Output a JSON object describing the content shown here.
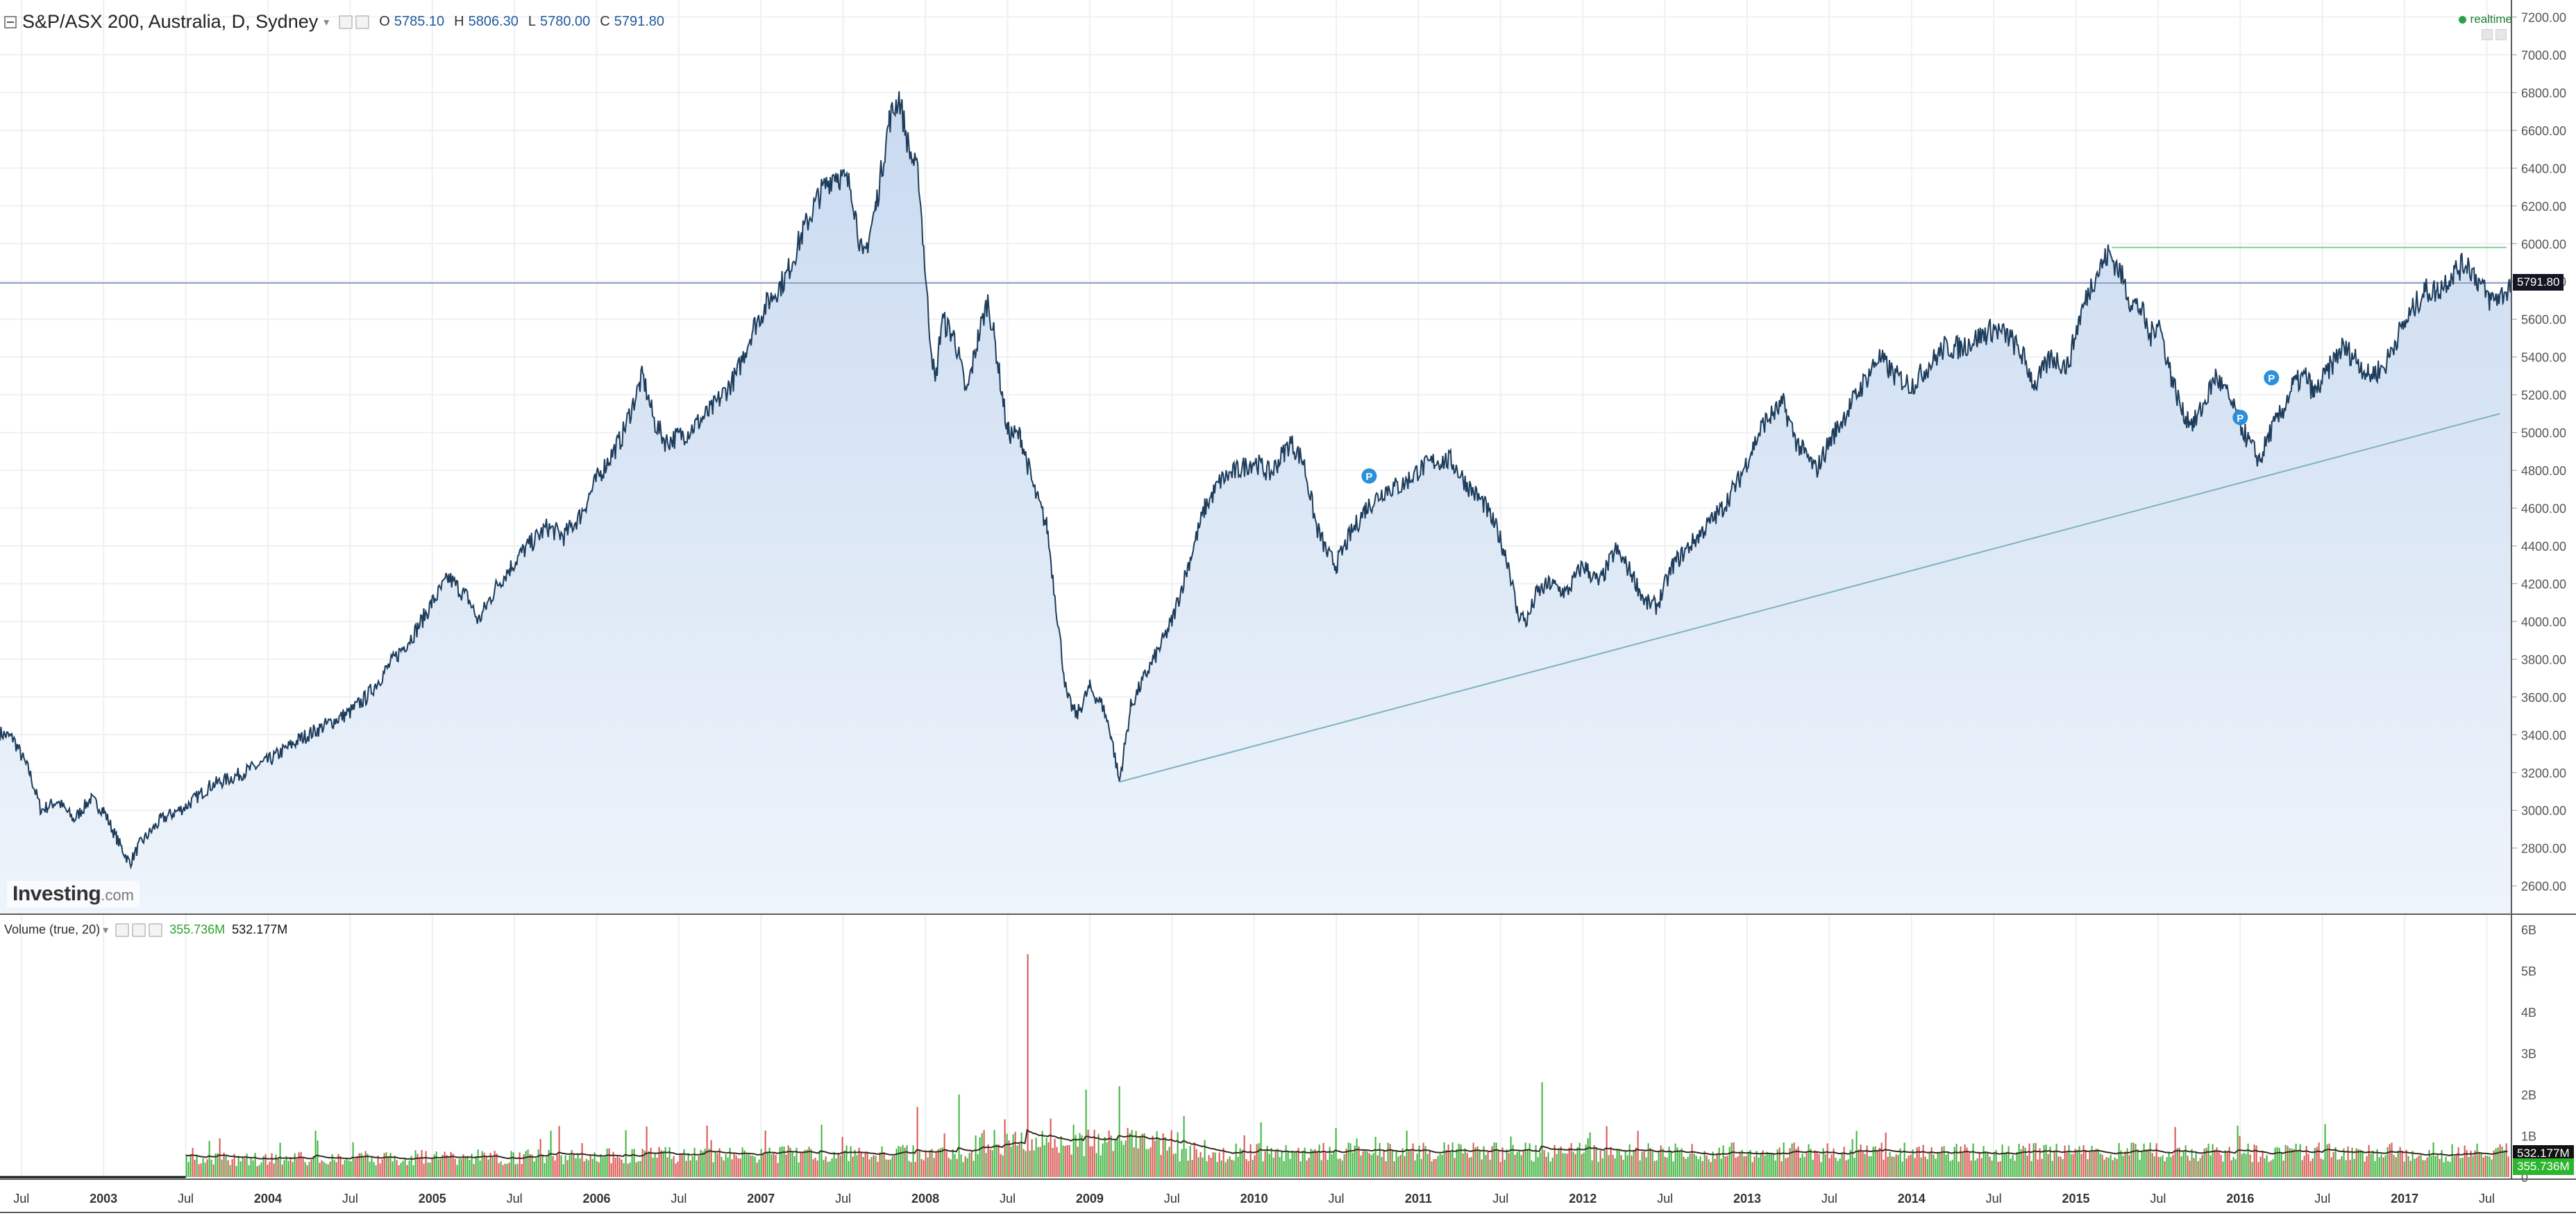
{
  "header": {
    "symbol": "S&P/ASX 200, Australia, D, Sydney",
    "open_label": "O",
    "open": "5785.10",
    "high_label": "H",
    "high": "5806.30",
    "low_label": "L",
    "low": "5780.00",
    "close_label": "C",
    "close": "5791.80",
    "realtime": "realtime"
  },
  "volume_legend": {
    "title": "Volume (true, 20)",
    "volume": "355.736M",
    "average": "532.177M"
  },
  "logo": {
    "name": "Investing",
    "domain": ".com"
  },
  "colors": {
    "line": "#1e3d5c",
    "area_top": "#c9daf0",
    "area_bottom": "#eef4fb",
    "grid": "#eef0f3",
    "current_price_line": "#8fa0c4",
    "resistance_line": "#7fcf9a",
    "trendline": "#7db3bf",
    "vol_up": "#3cb43c",
    "vol_down": "#d9534f",
    "vol_ma": "#3a2a22",
    "price_tag_bg": "#131722",
    "avg_tag_bg": "#111111",
    "vol_tag_bg": "#2db52d",
    "marker": "#2b90d9"
  },
  "chart_data": {
    "type": "line",
    "title": "S&P/ASX 200, Australia, D, Sydney",
    "price_axis": {
      "ylim": [
        2450,
        7290
      ],
      "ticks": [
        "2600.00",
        "2800.00",
        "3000.00",
        "3200.00",
        "3400.00",
        "3600.00",
        "3800.00",
        "4000.00",
        "4200.00",
        "4400.00",
        "4600.00",
        "4800.00",
        "5000.00",
        "5200.00",
        "5400.00",
        "5600.00",
        "5800.00",
        "6000.00",
        "6200.00",
        "6400.00",
        "6600.00",
        "6800.00",
        "7000.00",
        "7200.00"
      ],
      "current_price": "5791.80"
    },
    "time_axis": {
      "xlim": [
        2002.37,
        2017.65
      ],
      "ticks": [
        {
          "t": 2002.5,
          "label": "Jul"
        },
        {
          "t": 2003.0,
          "label": "2003"
        },
        {
          "t": 2003.5,
          "label": "Jul"
        },
        {
          "t": 2004.0,
          "label": "2004"
        },
        {
          "t": 2004.5,
          "label": "Jul"
        },
        {
          "t": 2005.0,
          "label": "2005"
        },
        {
          "t": 2005.5,
          "label": "Jul"
        },
        {
          "t": 2006.0,
          "label": "2006"
        },
        {
          "t": 2006.5,
          "label": "Jul"
        },
        {
          "t": 2007.0,
          "label": "2007"
        },
        {
          "t": 2007.5,
          "label": "Jul"
        },
        {
          "t": 2008.0,
          "label": "2008"
        },
        {
          "t": 2008.5,
          "label": "Jul"
        },
        {
          "t": 2009.0,
          "label": "2009"
        },
        {
          "t": 2009.5,
          "label": "Jul"
        },
        {
          "t": 2010.0,
          "label": "2010"
        },
        {
          "t": 2010.5,
          "label": "Jul"
        },
        {
          "t": 2011.0,
          "label": "2011"
        },
        {
          "t": 2011.5,
          "label": "Jul"
        },
        {
          "t": 2012.0,
          "label": "2012"
        },
        {
          "t": 2012.5,
          "label": "Jul"
        },
        {
          "t": 2013.0,
          "label": "2013"
        },
        {
          "t": 2013.5,
          "label": "Jul"
        },
        {
          "t": 2014.0,
          "label": "2014"
        },
        {
          "t": 2014.5,
          "label": "Jul"
        },
        {
          "t": 2015.0,
          "label": "2015"
        },
        {
          "t": 2015.5,
          "label": "Jul"
        },
        {
          "t": 2016.0,
          "label": "2016"
        },
        {
          "t": 2016.5,
          "label": "Jul"
        },
        {
          "t": 2017.0,
          "label": "2017"
        },
        {
          "t": 2017.5,
          "label": "Jul"
        }
      ]
    },
    "series": [
      {
        "values_note_free": true,
        "points": [
          [
            2002.37,
            3410
          ],
          [
            2002.45,
            3380
          ],
          [
            2002.55,
            3200
          ],
          [
            2002.62,
            3000
          ],
          [
            2002.72,
            3050
          ],
          [
            2002.82,
            2950
          ],
          [
            2002.92,
            3060
          ],
          [
            2003.0,
            3000
          ],
          [
            2003.08,
            2850
          ],
          [
            2003.16,
            2720
          ],
          [
            2003.22,
            2820
          ],
          [
            2003.35,
            2950
          ],
          [
            2003.5,
            3020
          ],
          [
            2003.65,
            3130
          ],
          [
            2003.8,
            3180
          ],
          [
            2004.0,
            3260
          ],
          [
            2004.2,
            3380
          ],
          [
            2004.35,
            3450
          ],
          [
            2004.5,
            3520
          ],
          [
            2004.6,
            3600
          ],
          [
            2004.75,
            3780
          ],
          [
            2004.9,
            3950
          ],
          [
            2005.0,
            4100
          ],
          [
            2005.1,
            4230
          ],
          [
            2005.22,
            4120
          ],
          [
            2005.28,
            4000
          ],
          [
            2005.4,
            4200
          ],
          [
            2005.55,
            4370
          ],
          [
            2005.7,
            4500
          ],
          [
            2005.8,
            4450
          ],
          [
            2005.9,
            4560
          ],
          [
            2006.0,
            4750
          ],
          [
            2006.15,
            4970
          ],
          [
            2006.28,
            5300
          ],
          [
            2006.35,
            5060
          ],
          [
            2006.42,
            4950
          ],
          [
            2006.55,
            5000
          ],
          [
            2006.7,
            5120
          ],
          [
            2006.85,
            5300
          ],
          [
            2006.95,
            5550
          ],
          [
            2007.05,
            5700
          ],
          [
            2007.15,
            5820
          ],
          [
            2007.25,
            6050
          ],
          [
            2007.35,
            6250
          ],
          [
            2007.45,
            6380
          ],
          [
            2007.55,
            6300
          ],
          [
            2007.62,
            5900
          ],
          [
            2007.7,
            6200
          ],
          [
            2007.78,
            6650
          ],
          [
            2007.84,
            6780
          ],
          [
            2007.9,
            6500
          ],
          [
            2007.96,
            6350
          ],
          [
            2008.02,
            5600
          ],
          [
            2008.06,
            5250
          ],
          [
            2008.1,
            5600
          ],
          [
            2008.18,
            5500
          ],
          [
            2008.25,
            5200
          ],
          [
            2008.32,
            5500
          ],
          [
            2008.38,
            5700
          ],
          [
            2008.42,
            5500
          ],
          [
            2008.5,
            5000
          ],
          [
            2008.58,
            4980
          ],
          [
            2008.66,
            4700
          ],
          [
            2008.74,
            4500
          ],
          [
            2008.8,
            4050
          ],
          [
            2008.86,
            3600
          ],
          [
            2008.92,
            3500
          ],
          [
            2009.0,
            3650
          ],
          [
            2009.08,
            3550
          ],
          [
            2009.13,
            3400
          ],
          [
            2009.18,
            3150
          ],
          [
            2009.25,
            3550
          ],
          [
            2009.33,
            3700
          ],
          [
            2009.42,
            3850
          ],
          [
            2009.5,
            4000
          ],
          [
            2009.6,
            4300
          ],
          [
            2009.7,
            4600
          ],
          [
            2009.8,
            4750
          ],
          [
            2009.9,
            4800
          ],
          [
            2010.0,
            4850
          ],
          [
            2010.1,
            4780
          ],
          [
            2010.22,
            4950
          ],
          [
            2010.3,
            4850
          ],
          [
            2010.38,
            4500
          ],
          [
            2010.45,
            4350
          ],
          [
            2010.5,
            4300
          ],
          [
            2010.58,
            4450
          ],
          [
            2010.68,
            4600
          ],
          [
            2010.8,
            4700
          ],
          [
            2010.9,
            4720
          ],
          [
            2011.0,
            4800
          ],
          [
            2011.1,
            4850
          ],
          [
            2011.2,
            4850
          ],
          [
            2011.3,
            4720
          ],
          [
            2011.4,
            4620
          ],
          [
            2011.48,
            4480
          ],
          [
            2011.55,
            4300
          ],
          [
            2011.6,
            4050
          ],
          [
            2011.66,
            4000
          ],
          [
            2011.72,
            4150
          ],
          [
            2011.8,
            4200
          ],
          [
            2011.9,
            4150
          ],
          [
            2012.0,
            4300
          ],
          [
            2012.1,
            4200
          ],
          [
            2012.2,
            4380
          ],
          [
            2012.3,
            4250
          ],
          [
            2012.38,
            4100
          ],
          [
            2012.45,
            4080
          ],
          [
            2012.55,
            4300
          ],
          [
            2012.65,
            4400
          ],
          [
            2012.75,
            4500
          ],
          [
            2012.85,
            4600
          ],
          [
            2012.95,
            4750
          ],
          [
            2013.0,
            4850
          ],
          [
            2013.1,
            5050
          ],
          [
            2013.22,
            5150
          ],
          [
            2013.3,
            4950
          ],
          [
            2013.42,
            4800
          ],
          [
            2013.5,
            4950
          ],
          [
            2013.6,
            5100
          ],
          [
            2013.7,
            5250
          ],
          [
            2013.8,
            5400
          ],
          [
            2013.9,
            5300
          ],
          [
            2014.0,
            5250
          ],
          [
            2014.1,
            5350
          ],
          [
            2014.2,
            5450
          ],
          [
            2014.3,
            5450
          ],
          [
            2014.4,
            5500
          ],
          [
            2014.5,
            5550
          ],
          [
            2014.6,
            5500
          ],
          [
            2014.68,
            5400
          ],
          [
            2014.75,
            5250
          ],
          [
            2014.85,
            5400
          ],
          [
            2014.95,
            5350
          ],
          [
            2015.02,
            5600
          ],
          [
            2015.1,
            5800
          ],
          [
            2015.2,
            5950
          ],
          [
            2015.27,
            5850
          ],
          [
            2015.33,
            5700
          ],
          [
            2015.4,
            5650
          ],
          [
            2015.45,
            5500
          ],
          [
            2015.5,
            5600
          ],
          [
            2015.58,
            5300
          ],
          [
            2015.65,
            5100
          ],
          [
            2015.72,
            5050
          ],
          [
            2015.78,
            5150
          ],
          [
            2015.85,
            5300
          ],
          [
            2015.92,
            5200
          ],
          [
            2016.0,
            5050
          ],
          [
            2016.05,
            4950
          ],
          [
            2016.12,
            4850
          ],
          [
            2016.18,
            5000
          ],
          [
            2016.25,
            5100
          ],
          [
            2016.32,
            5250
          ],
          [
            2016.4,
            5300
          ],
          [
            2016.45,
            5200
          ],
          [
            2016.55,
            5350
          ],
          [
            2016.62,
            5450
          ],
          [
            2016.7,
            5400
          ],
          [
            2016.78,
            5300
          ],
          [
            2016.88,
            5350
          ],
          [
            2016.95,
            5500
          ],
          [
            2017.05,
            5650
          ],
          [
            2017.12,
            5750
          ],
          [
            2017.2,
            5750
          ],
          [
            2017.3,
            5850
          ],
          [
            2017.38,
            5900
          ],
          [
            2017.45,
            5800
          ],
          [
            2017.52,
            5700
          ],
          [
            2017.6,
            5730
          ],
          [
            2017.65,
            5790
          ]
        ]
      }
    ],
    "markers": [
      {
        "t": 2010.7,
        "price": 4770,
        "label": "P"
      },
      {
        "t": 2016.0,
        "price": 5080,
        "label": "P"
      },
      {
        "t": 2016.19,
        "price": 5290,
        "label": "P"
      }
    ],
    "drawings": {
      "horizontal_line": {
        "price": 5791.8
      },
      "resistance": {
        "t_start": 2015.22,
        "t_end": 2017.62,
        "price": 5980
      },
      "trendline": {
        "t_start": 2009.18,
        "price_start": 3150,
        "t_end": 2017.58,
        "price_end": 5100
      }
    },
    "volume": {
      "axis_ticks": [
        "0",
        "1B",
        "2B",
        "3B",
        "4B",
        "5B",
        "6B"
      ],
      "ylim_billions": [
        0,
        6.3
      ],
      "start_t": 2003.5,
      "baseline_billions": 0.53,
      "spikes": [
        {
          "t": 2008.62,
          "billions": 5.4
        },
        {
          "t": 2007.95,
          "billions": 1.7
        },
        {
          "t": 2008.2,
          "billions": 2.0
        },
        {
          "t": 2009.18,
          "billions": 2.2
        },
        {
          "t": 2011.75,
          "billions": 2.3
        },
        {
          "t": 2008.48,
          "billions": 1.4
        }
      ],
      "ma_value_label": "532.177M",
      "volume_value_label": "355.736M"
    }
  }
}
